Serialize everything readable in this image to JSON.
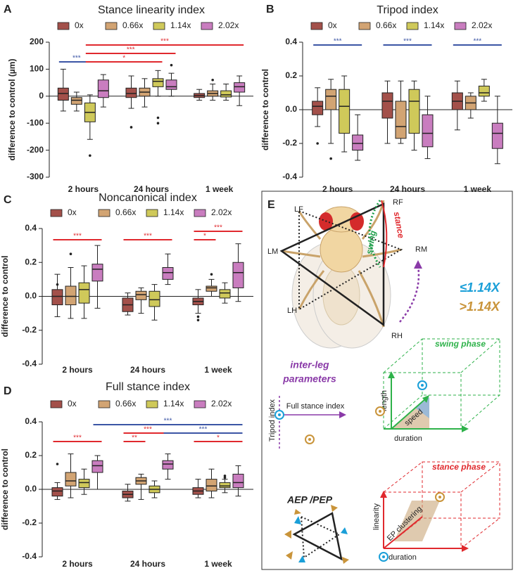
{
  "chart_data": [
    {
      "type": "box",
      "panel": "A",
      "title": "Stance linearity index",
      "ylabel": "difference to control (µm)",
      "categories": [
        "2 hours",
        "24 hours",
        "1 week"
      ],
      "ylim": [
        -300,
        200
      ],
      "yticks": [
        -300,
        -200,
        -100,
        0,
        100,
        200
      ],
      "series": [
        {
          "name": "0x",
          "color": "#a3504a",
          "values": [
            {
              "min": -55,
              "q1": -15,
              "median": 10,
              "q3": 30,
              "max": 100
            },
            {
              "min": -45,
              "q1": -5,
              "median": 10,
              "q3": 30,
              "max": 75,
              "outliers": [
                -115
              ]
            },
            {
              "min": -15,
              "q1": -5,
              "median": 2,
              "q3": 10,
              "max": 25
            }
          ]
        },
        {
          "name": "0.66x",
          "color": "#d2a473",
          "values": [
            {
              "min": -55,
              "q1": -30,
              "median": -15,
              "q3": -5,
              "max": 15
            },
            {
              "min": -40,
              "q1": 0,
              "median": 15,
              "q3": 30,
              "max": 65
            },
            {
              "min": -15,
              "q1": 0,
              "median": 10,
              "q3": 20,
              "max": 45,
              "outliers": [
                60
              ]
            }
          ]
        },
        {
          "name": "1.14x",
          "color": "#cfc95a",
          "values": [
            {
              "min": -160,
              "q1": -95,
              "median": -60,
              "q3": -25,
              "max": 5,
              "outliers": [
                -220
              ]
            },
            {
              "min": 0,
              "q1": 35,
              "median": 55,
              "q3": 65,
              "max": 95,
              "outliers": [
                -80,
                -100
              ]
            },
            {
              "min": -15,
              "q1": -3,
              "median": 5,
              "q3": 20,
              "max": 45
            }
          ]
        },
        {
          "name": "2.02x",
          "color": "#c97dbf",
          "values": [
            {
              "min": -40,
              "q1": -5,
              "median": 20,
              "q3": 60,
              "max": 80
            },
            {
              "min": 0,
              "q1": 25,
              "median": 35,
              "q3": 60,
              "max": 85,
              "outliers": [
                115
              ]
            },
            {
              "min": -35,
              "q1": 15,
              "median": 35,
              "q3": 50,
              "max": 75
            }
          ]
        }
      ],
      "significance": [
        {
          "label": "***",
          "from": [
            0,
            0
          ],
          "to": [
            0,
            2
          ],
          "color": "#3b55a5"
        },
        {
          "label": "*",
          "from": [
            0,
            2
          ],
          "to": [
            1,
            2
          ],
          "color": "#e0292e"
        },
        {
          "label": "***",
          "from": [
            0,
            2
          ],
          "to": [
            1,
            3
          ],
          "color": "#e0292e"
        },
        {
          "label": "***",
          "from": [
            0,
            2
          ],
          "to": [
            2,
            3
          ],
          "color": "#e0292e"
        }
      ]
    },
    {
      "type": "box",
      "panel": "B",
      "title": "Tripod index",
      "ylabel": "difference to control",
      "categories": [
        "2 hours",
        "24 hours",
        "1 week"
      ],
      "ylim": [
        -0.4,
        0.4
      ],
      "yticks": [
        -0.4,
        -0.2,
        {
          "value": 0,
          "label": "0.0"
        },
        0.2,
        0.4
      ],
      "series": [
        {
          "name": "0x",
          "color": "#a3504a",
          "values": [
            {
              "min": -0.1,
              "q1": -0.03,
              "median": 0.02,
              "q3": 0.05,
              "max": 0.13,
              "outliers": [
                -0.2
              ]
            },
            {
              "min": -0.2,
              "q1": -0.05,
              "median": 0.05,
              "q3": 0.1,
              "max": 0.17
            },
            {
              "min": -0.12,
              "q1": 0.0,
              "median": 0.05,
              "q3": 0.1,
              "max": 0.17
            }
          ]
        },
        {
          "name": "0.66x",
          "color": "#d2a473",
          "values": [
            {
              "min": -0.2,
              "q1": 0.0,
              "median": 0.08,
              "q3": 0.12,
              "max": 0.18,
              "outliers": [
                -0.29
              ]
            },
            {
              "min": -0.2,
              "q1": -0.17,
              "median": -0.1,
              "q3": 0.05,
              "max": 0.17
            },
            {
              "min": -0.05,
              "q1": 0.0,
              "median": 0.04,
              "q3": 0.08,
              "max": 0.1
            }
          ]
        },
        {
          "name": "1.14x",
          "color": "#cfc95a",
          "values": [
            {
              "min": -0.25,
              "q1": -0.14,
              "median": 0.02,
              "q3": 0.12,
              "max": 0.2
            },
            {
              "min": -0.24,
              "q1": -0.14,
              "median": 0.05,
              "q3": 0.12,
              "max": 0.17
            },
            {
              "min": 0.05,
              "q1": 0.08,
              "median": 0.1,
              "q3": 0.14,
              "max": 0.18
            }
          ]
        },
        {
          "name": "2.02x",
          "color": "#c97dbf",
          "values": [
            {
              "min": -0.3,
              "q1": -0.24,
              "median": -0.2,
              "q3": -0.15,
              "max": -0.03
            },
            {
              "min": -0.29,
              "q1": -0.22,
              "median": -0.14,
              "q3": -0.03,
              "max": 0.08
            },
            {
              "min": -0.32,
              "q1": -0.23,
              "median": -0.14,
              "q3": -0.08,
              "max": 0.08
            }
          ]
        }
      ],
      "significance": [
        {
          "label": "***",
          "from": [
            0,
            0
          ],
          "to": [
            0,
            3
          ],
          "color": "#3b55a5"
        },
        {
          "label": "***",
          "from": [
            1,
            0
          ],
          "to": [
            1,
            3
          ],
          "color": "#3b55a5"
        },
        {
          "label": "***",
          "from": [
            2,
            0
          ],
          "to": [
            2,
            3
          ],
          "color": "#3b55a5"
        }
      ]
    },
    {
      "type": "box",
      "panel": "C",
      "title": "Noncanonical index",
      "ylabel": "difference to control",
      "categories": [
        "2 hours",
        "24 hours",
        "1 week"
      ],
      "ylim": [
        -0.4,
        0.4
      ],
      "yticks": [
        -0.4,
        -0.2,
        {
          "value": 0,
          "label": "0.0"
        },
        0.2,
        0.4
      ],
      "series": [
        {
          "name": "0x",
          "color": "#a3504a",
          "values": [
            {
              "min": -0.12,
              "q1": -0.05,
              "median": 0.0,
              "q3": 0.04,
              "max": 0.13,
              "outliers": [
                0.07
              ]
            },
            {
              "min": -0.11,
              "q1": -0.09,
              "median": -0.05,
              "q3": -0.01,
              "max": 0.02
            },
            {
              "min": -0.1,
              "q1": -0.05,
              "median": -0.03,
              "q3": -0.01,
              "max": 0.04,
              "outliers": [
                -0.12,
                -0.14
              ]
            }
          ]
        },
        {
          "name": "0.66x",
          "color": "#d2a473",
          "values": [
            {
              "min": -0.13,
              "q1": -0.05,
              "median": 0.0,
              "q3": 0.06,
              "max": 0.17,
              "outliers": [
                0.25
              ]
            },
            {
              "min": -0.1,
              "q1": -0.02,
              "median": 0.01,
              "q3": 0.03,
              "max": 0.05
            },
            {
              "min": 0.0,
              "q1": 0.03,
              "median": 0.05,
              "q3": 0.06,
              "max": 0.1,
              "outliers": [
                0.13
              ]
            }
          ]
        },
        {
          "name": "1.14x",
          "color": "#cfc95a",
          "values": [
            {
              "min": -0.13,
              "q1": -0.04,
              "median": 0.04,
              "q3": 0.08,
              "max": 0.18
            },
            {
              "min": -0.14,
              "q1": -0.06,
              "median": -0.02,
              "q3": 0.03,
              "max": 0.07
            },
            {
              "min": -0.04,
              "q1": -0.01,
              "median": 0.02,
              "q3": 0.04,
              "max": 0.08
            }
          ]
        },
        {
          "name": "2.02x",
          "color": "#c97dbf",
          "values": [
            {
              "min": -0.07,
              "q1": 0.09,
              "median": 0.16,
              "q3": 0.19,
              "max": 0.3
            },
            {
              "min": 0.07,
              "q1": 0.1,
              "median": 0.14,
              "q3": 0.17,
              "max": 0.25
            },
            {
              "min": -0.03,
              "q1": 0.05,
              "median": 0.14,
              "q3": 0.2,
              "max": 0.31
            }
          ]
        }
      ],
      "significance": [
        {
          "label": "***",
          "from": [
            0,
            0
          ],
          "to": [
            0,
            3
          ],
          "color": "#e0292e"
        },
        {
          "label": "***",
          "from": [
            1,
            0
          ],
          "to": [
            1,
            3
          ],
          "color": "#e0292e"
        },
        {
          "label": "*",
          "from": [
            2,
            0
          ],
          "to": [
            2,
            1
          ],
          "color": "#e0292e"
        },
        {
          "label": "***",
          "from": [
            2,
            0
          ],
          "to": [
            2,
            3
          ],
          "color": "#e0292e"
        }
      ]
    },
    {
      "type": "box",
      "panel": "D",
      "title": "Full stance index",
      "ylabel": "difference to control",
      "categories": [
        "2 hours",
        "24 hours",
        "1 week"
      ],
      "ylim": [
        -0.4,
        0.4
      ],
      "yticks": [
        -0.4,
        -0.2,
        {
          "value": 0,
          "label": "0.0"
        },
        0.2,
        0.4
      ],
      "series": [
        {
          "name": "0x",
          "color": "#a3504a",
          "values": [
            {
              "min": -0.06,
              "q1": -0.04,
              "median": -0.01,
              "q3": 0.01,
              "max": 0.04,
              "outliers": [
                0.15
              ]
            },
            {
              "min": -0.07,
              "q1": -0.05,
              "median": -0.03,
              "q3": -0.01,
              "max": 0.03
            },
            {
              "min": -0.05,
              "q1": -0.03,
              "median": -0.01,
              "q3": 0.01,
              "max": 0.06
            }
          ]
        },
        {
          "name": "0.66x",
          "color": "#d2a473",
          "values": [
            {
              "min": -0.05,
              "q1": 0.02,
              "median": 0.05,
              "q3": 0.1,
              "max": 0.21
            },
            {
              "min": -0.06,
              "q1": 0.03,
              "median": 0.05,
              "q3": 0.07,
              "max": 0.09
            },
            {
              "min": -0.05,
              "q1": -0.01,
              "median": 0.02,
              "q3": 0.06,
              "max": 0.12
            }
          ]
        },
        {
          "name": "1.14x",
          "color": "#cfc95a",
          "values": [
            {
              "min": -0.03,
              "q1": 0.01,
              "median": 0.04,
              "q3": 0.06,
              "max": 0.12
            },
            {
              "min": -0.05,
              "q1": -0.02,
              "median": 0.0,
              "q3": 0.02,
              "max": 0.05
            },
            {
              "min": -0.02,
              "q1": 0.01,
              "median": 0.02,
              "q3": 0.04,
              "max": 0.06,
              "outliers": [
                0.07,
                0.08
              ]
            }
          ]
        },
        {
          "name": "2.02x",
          "color": "#c97dbf",
          "values": [
            {
              "min": 0.0,
              "q1": 0.1,
              "median": 0.14,
              "q3": 0.17,
              "max": 0.2
            },
            {
              "min": 0.06,
              "q1": 0.12,
              "median": 0.15,
              "q3": 0.17,
              "max": 0.21
            },
            {
              "min": -0.04,
              "q1": 0.01,
              "median": 0.04,
              "q3": 0.09,
              "max": 0.14
            }
          ]
        }
      ],
      "significance": [
        {
          "label": "***",
          "from": [
            0,
            0
          ],
          "to": [
            0,
            3
          ],
          "color": "#e0292e"
        },
        {
          "label": "**",
          "from": [
            1,
            0
          ],
          "to": [
            1,
            1
          ],
          "color": "#e0292e"
        },
        {
          "label": "***",
          "from": [
            1,
            0
          ],
          "to": [
            1,
            3
          ],
          "color": "#e0292e"
        },
        {
          "label": "*",
          "from": [
            2,
            0
          ],
          "to": [
            2,
            3
          ],
          "color": "#e0292e"
        },
        {
          "label": "***",
          "from": [
            1,
            3
          ],
          "to": [
            2,
            3
          ],
          "color": "#3b55a5"
        },
        {
          "label": "***",
          "from": [
            0,
            3
          ],
          "to": [
            2,
            3
          ],
          "color": "#3b55a5"
        }
      ]
    }
  ],
  "diagram": {
    "panel": "E",
    "legs": [
      "LF",
      "RF",
      "LM",
      "RM",
      "LH",
      "RH"
    ],
    "swing": "swing",
    "stance": "stance",
    "groups": [
      "≤1.14X",
      ">1.14X"
    ],
    "inter_leg": [
      "inter-leg",
      "parameters"
    ],
    "inter_leg_axes": [
      "Full stance index",
      "Tripod index"
    ],
    "swing_phase": {
      "title": "swing phase",
      "axes": [
        "length",
        "speed",
        "duration"
      ]
    },
    "stance_phase": {
      "title": "stance phase",
      "axes": [
        "linearity",
        "EP clustering",
        "duration"
      ]
    },
    "aep_pep": "AEP /PEP"
  }
}
